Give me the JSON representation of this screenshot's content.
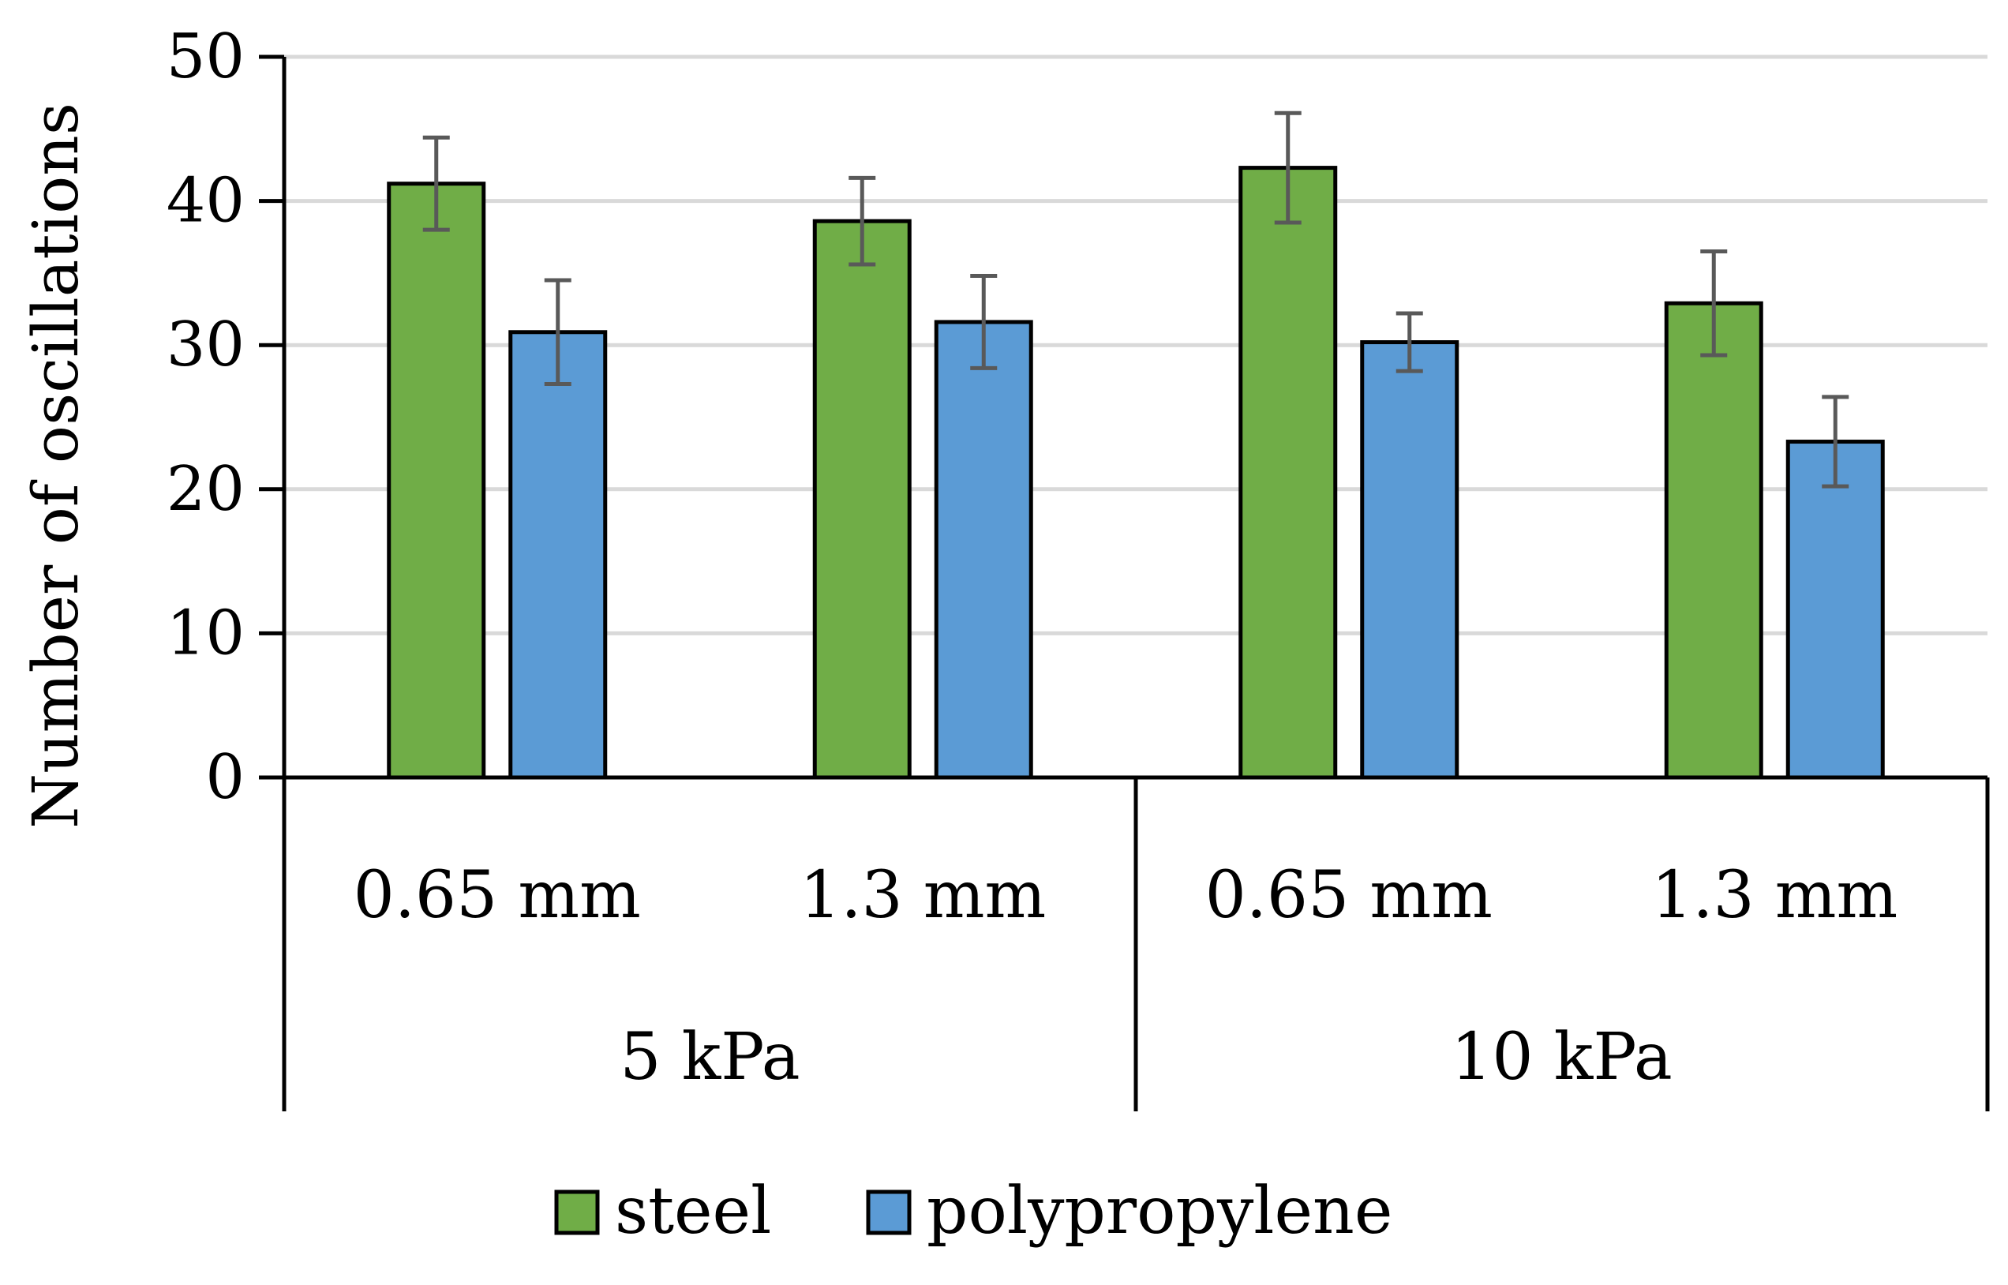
{
  "chart_data": {
    "type": "bar",
    "title": "",
    "xlabel": "",
    "ylabel": "Number of oscillations",
    "ylim": [
      0,
      50
    ],
    "yticks": [
      0,
      10,
      20,
      30,
      40,
      50
    ],
    "grid": "horizontal",
    "legend_position": "bottom",
    "groups": [
      {
        "label": "5 kPa",
        "categories": [
          "0.65 mm",
          "1.3 mm"
        ]
      },
      {
        "label": "10 kPa",
        "categories": [
          "0.65 mm",
          "1.3 mm"
        ]
      }
    ],
    "categories": [
      "0.65 mm",
      "1.3 mm",
      "0.65 mm",
      "1.3 mm"
    ],
    "series": [
      {
        "name": "steel",
        "color": "#70ad47",
        "values": [
          41.2,
          38.6,
          42.3,
          32.9
        ],
        "errors": [
          3.2,
          3.0,
          3.8,
          3.6
        ]
      },
      {
        "name": "polypropylene",
        "color": "#5b9bd5",
        "values": [
          30.9,
          31.6,
          30.2,
          23.3
        ],
        "errors": [
          3.6,
          3.2,
          2.0,
          3.1
        ]
      }
    ]
  }
}
